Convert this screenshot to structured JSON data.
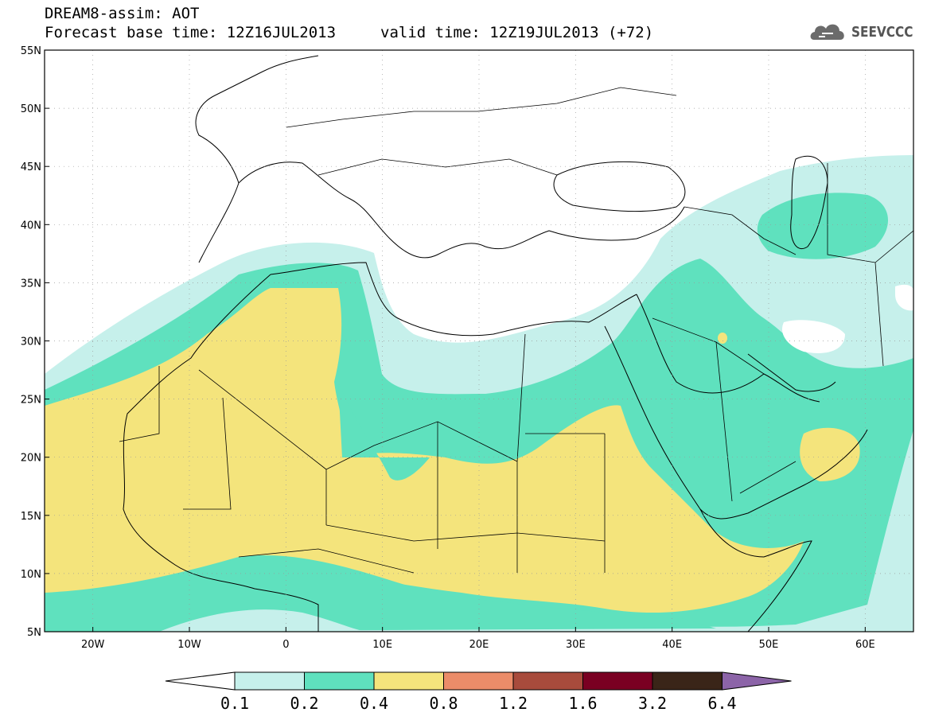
{
  "title": {
    "line1": "DREAM8-assim: AOT",
    "base_time": "Forecast base time: 12Z16JUL2013",
    "valid_time": "valid time: 12Z19JUL2013 (+72)"
  },
  "logo": {
    "text": "SEEVCCC",
    "icon": "cloud-icon"
  },
  "map": {
    "lon_range": [
      -25,
      65
    ],
    "lat_range": [
      5,
      55
    ],
    "lon_ticks": [
      {
        "value": -20,
        "label": "20W"
      },
      {
        "value": -10,
        "label": "10W"
      },
      {
        "value": 0,
        "label": "0"
      },
      {
        "value": 10,
        "label": "10E"
      },
      {
        "value": 20,
        "label": "20E"
      },
      {
        "value": 30,
        "label": "30E"
      },
      {
        "value": 40,
        "label": "40E"
      },
      {
        "value": 50,
        "label": "50E"
      },
      {
        "value": 60,
        "label": "60E"
      }
    ],
    "lat_ticks": [
      {
        "value": 55,
        "label": "55N"
      },
      {
        "value": 50,
        "label": "50N"
      },
      {
        "value": 45,
        "label": "45N"
      },
      {
        "value": 40,
        "label": "40N"
      },
      {
        "value": 35,
        "label": "35N"
      },
      {
        "value": 30,
        "label": "30N"
      },
      {
        "value": 25,
        "label": "25N"
      },
      {
        "value": 20,
        "label": "20N"
      },
      {
        "value": 15,
        "label": "15N"
      },
      {
        "value": 10,
        "label": "10N"
      },
      {
        "value": 5,
        "label": "5N"
      }
    ],
    "grid": true,
    "colors": {
      "band_0_1": "#c6f0eb",
      "band_0_2": "#5fe1be",
      "band_0_4": "#f4e47c"
    }
  },
  "colorbar": {
    "levels": [
      "0.1",
      "0.2",
      "0.4",
      "0.8",
      "1.2",
      "1.6",
      "3.2",
      "6.4"
    ],
    "colors": [
      "#ffffff",
      "#c6f0eb",
      "#5fe1be",
      "#f4e47c",
      "#eb8c69",
      "#a84b3c",
      "#7a0022",
      "#3a2518",
      "#8c64a8"
    ]
  }
}
